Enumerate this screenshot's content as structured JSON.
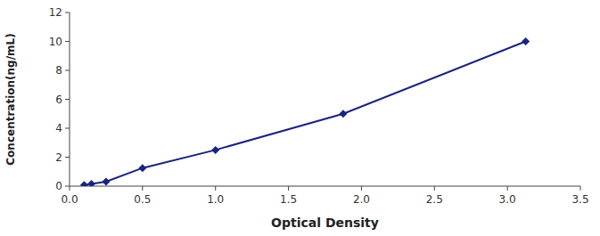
{
  "chart_data": {
    "type": "line",
    "xlabel": "Optical Density",
    "ylabel": "Concentration(ng/mL)",
    "x": [
      0.1,
      0.15,
      0.25,
      0.5,
      1.0,
      1.875,
      3.125
    ],
    "values": [
      0.078,
      0.156,
      0.312,
      1.25,
      2.5,
      5.0,
      10.0
    ],
    "color": "#1A237E",
    "marker": "diamond",
    "xlim": [
      0,
      3.5
    ],
    "ylim": [
      0,
      12
    ],
    "xticks": [
      {
        "value": 0,
        "label": "0.0"
      },
      0.5,
      {
        "value": 1.0,
        "label": "1.0"
      },
      1.5,
      {
        "value": 2.0,
        "label": "2.0"
      },
      2.5,
      {
        "value": 3.0,
        "label": "3.0"
      },
      3.5
    ],
    "yticks": [
      0,
      2,
      4,
      6,
      8,
      10,
      12
    ],
    "grid": false
  }
}
